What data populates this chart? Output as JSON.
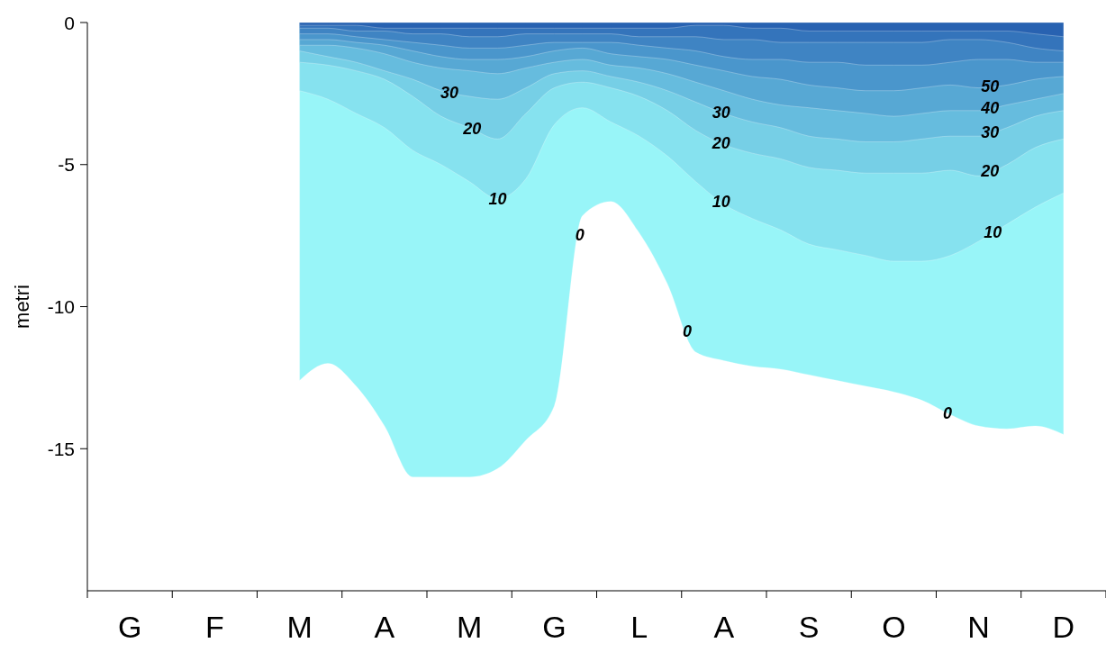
{
  "chart_data": {
    "type": "area",
    "ylabel": "metri",
    "ylim": [
      -20,
      0
    ],
    "yticks": [
      0,
      -5,
      -10,
      -15
    ],
    "categories": [
      null,
      "G",
      null,
      null,
      "F",
      null,
      null,
      "M",
      null,
      null,
      "A",
      null,
      null,
      "M",
      null,
      null,
      "G",
      null,
      null,
      "L",
      null,
      null,
      "A",
      null,
      null,
      "S",
      null,
      null,
      "O",
      null,
      null,
      "N",
      null,
      null,
      "D",
      null
    ],
    "series": [
      {
        "color": "#98f5f8",
        "values": [
          null,
          null,
          null,
          null,
          null,
          null,
          null,
          -12.6,
          -12.0,
          -12.8,
          -14.2,
          -16.0,
          -16.0,
          -16.0,
          -15.7,
          -14.7,
          -13.5,
          -6.8,
          -6.3,
          -7.4,
          -9.2,
          -11.6,
          -11.9,
          -12.1,
          -12.2,
          -12.4,
          -12.6,
          -12.8,
          -13.0,
          -13.3,
          -13.8,
          -14.2,
          -14.3,
          -14.2,
          -14.5,
          null
        ]
      },
      {
        "color": "#86e2ef",
        "values": [
          null,
          null,
          null,
          null,
          null,
          null,
          null,
          -2.4,
          -2.7,
          -3.2,
          -3.7,
          -4.5,
          -5.0,
          -5.6,
          -6.2,
          -5.5,
          -3.6,
          -3.0,
          -3.5,
          -4.0,
          -4.7,
          -5.6,
          -6.4,
          -6.9,
          -7.3,
          -7.8,
          -8.0,
          -8.2,
          -8.4,
          -8.4,
          -8.2,
          -7.7,
          -7.1,
          -6.5,
          -6.0,
          null
        ]
      },
      {
        "color": "#76cfe6",
        "values": [
          null,
          null,
          null,
          null,
          null,
          null,
          null,
          -1.4,
          -1.5,
          -1.7,
          -2.0,
          -2.6,
          -3.3,
          -3.7,
          -4.1,
          -3.2,
          -2.3,
          -2.1,
          -2.3,
          -2.6,
          -3.1,
          -3.8,
          -4.3,
          -4.6,
          -4.8,
          -5.1,
          -5.2,
          -5.3,
          -5.3,
          -5.3,
          -5.2,
          -5.4,
          -5.0,
          -4.4,
          -4.1,
          null
        ]
      },
      {
        "color": "#66bcde",
        "values": [
          null,
          null,
          null,
          null,
          null,
          null,
          null,
          -1.0,
          -1.2,
          -1.4,
          -1.7,
          -2.0,
          -2.4,
          -2.6,
          -2.7,
          -2.3,
          -1.8,
          -1.7,
          -1.9,
          -2.1,
          -2.4,
          -2.8,
          -3.2,
          -3.5,
          -3.7,
          -4.0,
          -4.1,
          -4.2,
          -4.2,
          -4.1,
          -4.0,
          -4.0,
          -3.7,
          -3.3,
          -3.1,
          null
        ]
      },
      {
        "color": "#57a8d4",
        "values": [
          null,
          null,
          null,
          null,
          null,
          null,
          null,
          -0.8,
          -0.8,
          -0.9,
          -1.1,
          -1.4,
          -1.6,
          -1.7,
          -1.8,
          -1.6,
          -1.4,
          -1.3,
          -1.5,
          -1.6,
          -1.8,
          -2.1,
          -2.4,
          -2.7,
          -2.9,
          -3.0,
          -3.1,
          -3.2,
          -3.3,
          -3.2,
          -3.1,
          -3.1,
          -2.9,
          -2.7,
          -2.5,
          null
        ]
      },
      {
        "color": "#4a96cc",
        "values": [
          null,
          null,
          null,
          null,
          null,
          null,
          null,
          -0.6,
          -0.6,
          -0.7,
          -0.8,
          -1.0,
          -1.2,
          -1.3,
          -1.3,
          -1.2,
          -1.0,
          -0.9,
          -1.1,
          -1.2,
          -1.3,
          -1.5,
          -1.7,
          -1.9,
          -2.0,
          -2.2,
          -2.3,
          -2.4,
          -2.4,
          -2.3,
          -2.2,
          -2.3,
          -2.2,
          -2.0,
          -1.9,
          null
        ]
      },
      {
        "color": "#3f84c3",
        "values": [
          null,
          null,
          null,
          null,
          null,
          null,
          null,
          -0.4,
          -0.4,
          -0.5,
          -0.6,
          -0.7,
          -0.8,
          -0.9,
          -0.9,
          -0.8,
          -0.7,
          -0.7,
          -0.7,
          -0.8,
          -0.9,
          -1.0,
          -1.2,
          -1.3,
          -1.3,
          -1.4,
          -1.4,
          -1.5,
          -1.5,
          -1.5,
          -1.4,
          -1.3,
          -1.3,
          -1.4,
          -1.4,
          null
        ]
      },
      {
        "color": "#3474bb",
        "values": [
          null,
          null,
          null,
          null,
          null,
          null,
          null,
          -0.2,
          -0.2,
          -0.3,
          -0.3,
          -0.4,
          -0.4,
          -0.5,
          -0.5,
          -0.4,
          -0.4,
          -0.4,
          -0.4,
          -0.5,
          -0.5,
          -0.5,
          -0.6,
          -0.6,
          -0.7,
          -0.7,
          -0.7,
          -0.7,
          -0.7,
          -0.7,
          -0.6,
          -0.6,
          -0.7,
          -0.9,
          -1.0,
          null
        ]
      },
      {
        "color": "#2862b1",
        "values": [
          null,
          null,
          null,
          null,
          null,
          null,
          null,
          -0.1,
          -0.1,
          -0.1,
          -0.2,
          -0.2,
          -0.2,
          -0.2,
          -0.2,
          -0.2,
          -0.2,
          -0.2,
          -0.2,
          -0.2,
          -0.2,
          -0.1,
          -0.1,
          -0.2,
          -0.2,
          -0.3,
          -0.3,
          -0.3,
          -0.3,
          -0.3,
          -0.3,
          -0.3,
          -0.3,
          -0.4,
          -0.5,
          null
        ]
      }
    ],
    "annotations": [
      "30",
      "20",
      "10",
      "0",
      "30",
      "20",
      "10",
      "0",
      "0",
      "50",
      "40",
      "30",
      "20",
      "10"
    ]
  }
}
